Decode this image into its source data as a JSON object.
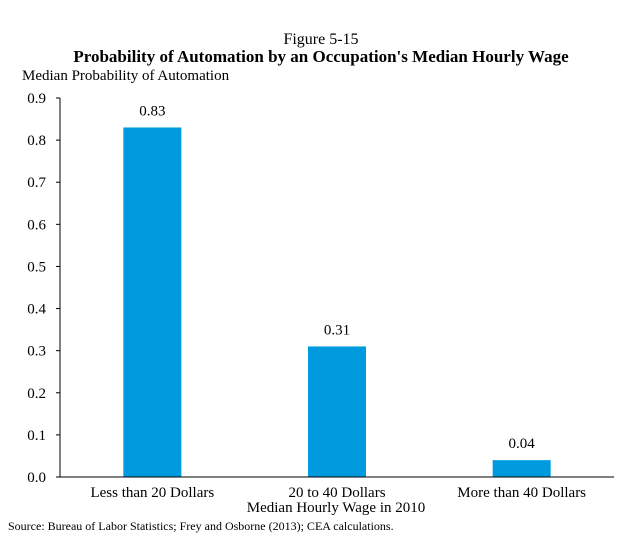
{
  "chart_data": {
    "type": "bar",
    "figure_label": "Figure 5-15",
    "title": "Probability of Automation by an Occupation's Median Hourly Wage",
    "ylabel": "Median Probability of Automation",
    "xlabel": "Median Hourly Wage in 2010",
    "categories": [
      "Less than 20 Dollars",
      "20 to 40 Dollars",
      "More than 40 Dollars"
    ],
    "values": [
      0.83,
      0.31,
      0.04
    ],
    "value_labels": [
      "0.83",
      "0.31",
      "0.04"
    ],
    "ylim": [
      0,
      0.9
    ],
    "yticks": [
      "0.0",
      "0.1",
      "0.2",
      "0.3",
      "0.4",
      "0.5",
      "0.6",
      "0.7",
      "0.8",
      "0.9"
    ],
    "bar_color": "#009ADE",
    "grid": false,
    "legend": "none",
    "source": "Source: Bureau of Labor Statistics; Frey and Osborne (2013); CEA calculations."
  }
}
